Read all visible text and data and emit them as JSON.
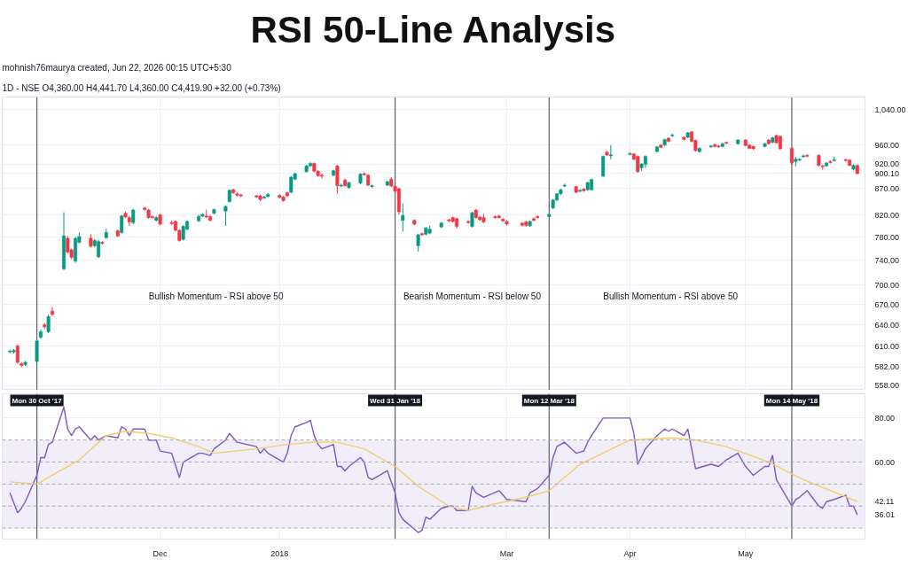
{
  "chart_data": [
    {
      "type": "candlestick",
      "title": "RSI 50-Line Analysis",
      "subtitle": "mohnish76maurya created, Jun 22, 2026 00:15 UTC+5:30",
      "annotations": [
        "1D - NSE O4,360.00 H4,441.70 L4,360.00 C4,419.90 +32.00 (+0.73%)",
        "Bullish Momentum - RSI above 50",
        "Bearish Momentum - RSI below 50",
        "Bullish Momentum - RSI above 50"
      ],
      "x": [
        "2017-10-23",
        "2017-10-24",
        "2017-10-25",
        "2017-10-26",
        "2017-10-27",
        "2017-10-30",
        "2017-10-31",
        "2017-11-01",
        "2017-11-02",
        "2017-11-03",
        "2017-11-06",
        "2017-11-07",
        "2017-11-08",
        "2017-11-09",
        "2017-11-10",
        "2017-11-13",
        "2017-11-14",
        "2017-11-15",
        "2017-11-16",
        "2017-11-17",
        "2017-11-20",
        "2017-11-21",
        "2017-11-22",
        "2017-11-23",
        "2017-11-24",
        "2017-11-27",
        "2017-11-28",
        "2017-11-29",
        "2017-11-30",
        "2017-12-01",
        "2017-12-04",
        "2017-12-05",
        "2017-12-06",
        "2017-12-07",
        "2017-12-08",
        "2017-12-11",
        "2017-12-12",
        "2017-12-13",
        "2017-12-14",
        "2017-12-15",
        "2017-12-18",
        "2017-12-19",
        "2017-12-20",
        "2017-12-21",
        "2017-12-22",
        "2017-12-26",
        "2017-12-27",
        "2017-12-28",
        "2017-12-29",
        "2018-01-01",
        "2018-01-02",
        "2018-01-03",
        "2018-01-04",
        "2018-01-05",
        "2018-01-08",
        "2018-01-09",
        "2018-01-10",
        "2018-01-11",
        "2018-01-12",
        "2018-01-15",
        "2018-01-16",
        "2018-01-17",
        "2018-01-18",
        "2018-01-19",
        "2018-01-22",
        "2018-01-23",
        "2018-01-24",
        "2018-01-25",
        "2018-01-29",
        "2018-01-30",
        "2018-01-31",
        "2018-02-01",
        "2018-02-02",
        "2018-02-05",
        "2018-02-06",
        "2018-02-07",
        "2018-02-08",
        "2018-02-09",
        "2018-02-12",
        "2018-02-14",
        "2018-02-15",
        "2018-02-16",
        "2018-02-19",
        "2018-02-20",
        "2018-02-21",
        "2018-02-22",
        "2018-02-23",
        "2018-02-26",
        "2018-02-27",
        "2018-02-28",
        "2018-03-01",
        "2018-03-05",
        "2018-03-06",
        "2018-03-07",
        "2018-03-08",
        "2018-03-09",
        "2018-03-12",
        "2018-03-13",
        "2018-03-14",
        "2018-03-15",
        "2018-03-16",
        "2018-03-19",
        "2018-03-20",
        "2018-03-21",
        "2018-03-22",
        "2018-03-23",
        "2018-03-26",
        "2018-03-27",
        "2018-03-28",
        "2018-04-02",
        "2018-04-03",
        "2018-04-04",
        "2018-04-05",
        "2018-04-06",
        "2018-04-09",
        "2018-04-10",
        "2018-04-11",
        "2018-04-12",
        "2018-04-13",
        "2018-04-16",
        "2018-04-17",
        "2018-04-18",
        "2018-04-19",
        "2018-04-20",
        "2018-04-23",
        "2018-04-24",
        "2018-04-25",
        "2018-04-26",
        "2018-04-27",
        "2018-04-30",
        "2018-05-02",
        "2018-05-03",
        "2018-05-04",
        "2018-05-07",
        "2018-05-08",
        "2018-05-09",
        "2018-05-10",
        "2018-05-11",
        "2018-05-14",
        "2018-05-15",
        "2018-05-16",
        "2018-05-17",
        "2018-05-18",
        "2018-05-21",
        "2018-05-22",
        "2018-05-23",
        "2018-05-24",
        "2018-05-25",
        "2018-05-28",
        "2018-05-29",
        "2018-05-30",
        "2018-05-31"
      ],
      "ohlc": [
        [
          602,
          605,
          600,
          603
        ],
        [
          602,
          606,
          600,
          604
        ],
        [
          610,
          612,
          586,
          588
        ],
        [
          586,
          588,
          582,
          584
        ],
        [
          585,
          590,
          583,
          588
        ],
        [
          589,
          619,
          587,
          617
        ],
        [
          622,
          633,
          620,
          630
        ],
        [
          640,
          642,
          634,
          637
        ],
        [
          630,
          655,
          628,
          652
        ],
        [
          660,
          666,
          652,
          655
        ],
        [
          726,
          825,
          724,
          782
        ],
        [
          778,
          782,
          752,
          754
        ],
        [
          758,
          760,
          742,
          745
        ],
        [
          739,
          780,
          736,
          778
        ],
        [
          771,
          788,
          769,
          781
        ],
        [
          778,
          785,
          762,
          764
        ],
        [
          765,
          777,
          762,
          774
        ],
        [
          746,
          775,
          744,
          772
        ],
        [
          771,
          773,
          767,
          769
        ],
        [
          779,
          795,
          777,
          788
        ],
        [
          791,
          794,
          780,
          782
        ],
        [
          788,
          820,
          786,
          818
        ],
        [
          823,
          826,
          814,
          816
        ],
        [
          815,
          818,
          800,
          807
        ],
        [
          806,
          831,
          803,
          829
        ],
        [
          833,
          835,
          828,
          830
        ],
        [
          829,
          831,
          813,
          815
        ],
        [
          817,
          819,
          813,
          815
        ],
        [
          810,
          818,
          808,
          815
        ],
        [
          820,
          822,
          801,
          803
        ],
        [
          806,
          810,
          802,
          804
        ],
        [
          808,
          810,
          790,
          792
        ],
        [
          792,
          794,
          772,
          774
        ],
        [
          776,
          801,
          774,
          799
        ],
        [
          794,
          810,
          792,
          808
        ],
        [
          809,
          820,
          807,
          817
        ],
        [
          818,
          823,
          816,
          821
        ],
        [
          818,
          830,
          814,
          816
        ],
        [
          817,
          820,
          808,
          810
        ],
        [
          823,
          832,
          821,
          830
        ],
        [
          827,
          838,
          800,
          836
        ],
        [
          845,
          869,
          843,
          867
        ],
        [
          868,
          870,
          860,
          862
        ],
        [
          860,
          862,
          855,
          857
        ],
        [
          858,
          860,
          854,
          856
        ],
        [
          856,
          858,
          852,
          854
        ],
        [
          856,
          858,
          846,
          849
        ],
        [
          852,
          856,
          850,
          854
        ],
        [
          855,
          861,
          853,
          859
        ],
        [
          857,
          859,
          851,
          853
        ],
        [
          854,
          856,
          845,
          847
        ],
        [
          862,
          864,
          854,
          856
        ],
        [
          863,
          895,
          861,
          893
        ],
        [
          889,
          902,
          887,
          900
        ],
        [
          904,
          918,
          902,
          916
        ],
        [
          916,
          924,
          914,
          921
        ],
        [
          921,
          923,
          903,
          905
        ],
        [
          905,
          907,
          894,
          896
        ],
        [
          897,
          900,
          890,
          895
        ],
        [
          897,
          908,
          895,
          906
        ],
        [
          916,
          918,
          860,
          876
        ],
        [
          875,
          880,
          873,
          877
        ],
        [
          887,
          890,
          874,
          876
        ],
        [
          872,
          884,
          870,
          882
        ],
        [
          881,
          901,
          879,
          899
        ],
        [
          900,
          903,
          896,
          898
        ],
        [
          897,
          899,
          875,
          877
        ],
        [
          874,
          878,
          872,
          876
        ],
        [
          877,
          886,
          875,
          884
        ],
        [
          889,
          893,
          873,
          875
        ],
        [
          875,
          877,
          863,
          865
        ],
        [
          870,
          872,
          820,
          826
        ],
        [
          810,
          842,
          790,
          819
        ],
        [
          810,
          812,
          801,
          803
        ],
        [
          765,
          786,
          755,
          784
        ],
        [
          786,
          788,
          782,
          784
        ],
        [
          785,
          798,
          783,
          796
        ],
        [
          787,
          800,
          785,
          794
        ],
        [
          798,
          807,
          796,
          805
        ],
        [
          811,
          813,
          807,
          809
        ],
        [
          815,
          817,
          806,
          808
        ],
        [
          813,
          815,
          795,
          799
        ],
        [
          808,
          810,
          804,
          806
        ],
        [
          799,
          826,
          797,
          824
        ],
        [
          829,
          831,
          813,
          815
        ],
        [
          816,
          818,
          809,
          811
        ],
        [
          815,
          822,
          805,
          807
        ],
        [
          817,
          819,
          813,
          815
        ],
        [
          818,
          820,
          813,
          815
        ],
        [
          812,
          814,
          807,
          809
        ],
        [
          808,
          810,
          801,
          803
        ],
        [
          805,
          807,
          799,
          801
        ],
        [
          807,
          809,
          798,
          801
        ],
        [
          800,
          810,
          798,
          808
        ],
        [
          813,
          815,
          808,
          810
        ],
        [
          817,
          819,
          813,
          815
        ],
        [
          817,
          823,
          815,
          821
        ],
        [
          833,
          850,
          831,
          848
        ],
        [
          848,
          862,
          846,
          860
        ],
        [
          860,
          870,
          858,
          868
        ],
        [
          875,
          880,
          873,
          877
        ],
        [
          874,
          876,
          861,
          863
        ],
        [
          865,
          869,
          863,
          867
        ],
        [
          869,
          871,
          864,
          866
        ],
        [
          868,
          884,
          866,
          882
        ],
        [
          868,
          890,
          866,
          888
        ],
        [
          895,
          938,
          893,
          936
        ],
        [
          945,
          947,
          937,
          939
        ],
        [
          937,
          960,
          930,
          939
        ],
        [
          940,
          944,
          938,
          942
        ],
        [
          941,
          943,
          928,
          930
        ],
        [
          936,
          938,
          902,
          904
        ],
        [
          912,
          922,
          905,
          920
        ],
        [
          919,
          938,
          912,
          936
        ],
        [
          946,
          958,
          944,
          956
        ],
        [
          960,
          962,
          953,
          955
        ],
        [
          960,
          974,
          958,
          972
        ],
        [
          975,
          977,
          966,
          968
        ],
        [
          980,
          985,
          978,
          982
        ],
        [
          977,
          979,
          970,
          972
        ],
        [
          977,
          989,
          975,
          987
        ],
        [
          989,
          991,
          966,
          968
        ],
        [
          970,
          972,
          946,
          948
        ],
        [
          946,
          955,
          944,
          953
        ],
        [
          956,
          960,
          954,
          958
        ],
        [
          961,
          963,
          955,
          957
        ],
        [
          958,
          960,
          954,
          956
        ],
        [
          957,
          965,
          955,
          963
        ],
        [
          966,
          968,
          962,
          964
        ],
        [
          963,
          973,
          961,
          971
        ],
        [
          971,
          973,
          957,
          959
        ],
        [
          960,
          962,
          951,
          953
        ],
        [
          957,
          959,
          950,
          952
        ],
        [
          957,
          965,
          955,
          963
        ],
        [
          971,
          973,
          961,
          963
        ],
        [
          966,
          978,
          964,
          976
        ],
        [
          981,
          983,
          963,
          965
        ],
        [
          979,
          981,
          950,
          952
        ],
        [
          953,
          955,
          918,
          922
        ],
        [
          925,
          935,
          915,
          930
        ],
        [
          928,
          932,
          926,
          930
        ],
        [
          935,
          940,
          933,
          937
        ],
        [
          938,
          940,
          934,
          936
        ],
        [
          938,
          940,
          915,
          917
        ],
        [
          916,
          918,
          908,
          914
        ],
        [
          916,
          924,
          914,
          922
        ],
        [
          925,
          927,
          921,
          923
        ],
        [
          927,
          935,
          925,
          929
        ],
        [
          929,
          931,
          925,
          927
        ],
        [
          928,
          930,
          915,
          917
        ],
        [
          909,
          919,
          907,
          917
        ],
        [
          917,
          919,
          899,
          900.1
        ]
      ],
      "xlim": [
        "2017-10-21",
        "2018-06-02"
      ],
      "xticks": [
        {
          "value": "2017-12-01",
          "label": null
        },
        {
          "value": "2018-01-01",
          "label": null
        },
        {
          "value": "2018-03-01",
          "label": null
        },
        {
          "value": "2018-04-02",
          "label": null
        },
        {
          "value": "2018-05-02",
          "label": null
        }
      ],
      "ylim": [
        552,
        1070
      ],
      "log": true,
      "yticks": [
        {
          "value": 558,
          "label": "558.00"
        },
        {
          "value": 582,
          "label": "582.00"
        },
        {
          "value": 610,
          "label": "610.00"
        },
        {
          "value": 640,
          "label": "640.00"
        },
        {
          "value": 670,
          "label": "670.00"
        },
        {
          "value": 700,
          "label": "700.00"
        },
        {
          "value": 740,
          "label": "740.00"
        },
        {
          "value": 780,
          "label": "780.00"
        },
        {
          "value": 820,
          "label": "820.00"
        },
        {
          "value": 870,
          "label": "870.00"
        },
        {
          "value": 900.1,
          "label": "900.10"
        },
        {
          "value": 920,
          "label": "920.00"
        },
        {
          "value": 960,
          "label": "960.00"
        },
        {
          "value": 1040,
          "label": "1,040.00"
        }
      ],
      "ref_lines": [
        {
          "axis": "x",
          "value": "2017-10-30",
          "color": "#5d606b"
        },
        {
          "axis": "x",
          "value": "2018-01-31",
          "color": "#5d606b"
        },
        {
          "axis": "x",
          "value": "2018-03-12",
          "color": "#5d606b"
        },
        {
          "axis": "x",
          "value": "2018-05-14",
          "color": "#5d606b"
        }
      ],
      "tick_labels": "y",
      "grid": true
    },
    {
      "type": "line",
      "series": [
        {
          "color": "#7e57c2",
          "x": [
            "2017-10-23",
            "2017-10-25",
            "2017-10-26",
            "2017-10-27",
            "2017-10-30",
            "2017-10-31",
            "2017-11-01",
            "2017-11-02",
            "2017-11-03",
            "2017-11-06",
            "2017-11-07",
            "2017-11-08",
            "2017-11-09",
            "2017-11-10",
            "2017-11-13",
            "2017-11-14",
            "2017-11-15",
            "2017-11-17",
            "2017-11-20",
            "2017-11-21",
            "2017-11-22",
            "2017-11-23",
            "2017-11-24",
            "2017-11-27",
            "2017-11-28",
            "2017-11-30",
            "2017-12-01",
            "2017-12-04",
            "2017-12-06",
            "2017-12-07",
            "2017-12-11",
            "2017-12-12",
            "2017-12-14",
            "2017-12-15",
            "2017-12-18",
            "2017-12-19",
            "2017-12-20",
            "2017-12-21",
            "2017-12-26",
            "2017-12-27",
            "2017-12-28",
            "2017-12-29",
            "2018-01-02",
            "2018-01-03",
            "2018-01-04",
            "2018-01-05",
            "2018-01-08",
            "2018-01-09",
            "2018-01-10",
            "2018-01-11",
            "2018-01-12",
            "2018-01-15",
            "2018-01-16",
            "2018-01-17",
            "2018-01-18",
            "2018-01-19",
            "2018-01-22",
            "2018-01-23",
            "2018-01-24",
            "2018-01-25",
            "2018-01-29",
            "2018-01-31",
            "2018-02-01",
            "2018-02-02",
            "2018-02-06",
            "2018-02-07",
            "2018-02-08",
            "2018-02-09",
            "2018-02-12",
            "2018-02-14",
            "2018-02-15",
            "2018-02-16",
            "2018-02-19",
            "2018-02-20",
            "2018-02-21",
            "2018-02-23",
            "2018-02-27",
            "2018-03-01",
            "2018-03-06",
            "2018-03-07",
            "2018-03-09",
            "2018-03-12",
            "2018-03-13",
            "2018-03-14",
            "2018-03-16",
            "2018-03-19",
            "2018-03-21",
            "2018-03-22",
            "2018-03-23",
            "2018-03-26",
            "2018-03-27",
            "2018-04-02",
            "2018-04-03",
            "2018-04-04",
            "2018-04-06",
            "2018-04-09",
            "2018-04-11",
            "2018-04-12",
            "2018-04-13",
            "2018-04-16",
            "2018-04-17",
            "2018-04-19",
            "2018-04-23",
            "2018-04-25",
            "2018-04-27",
            "2018-04-30",
            "2018-05-02",
            "2018-05-04",
            "2018-05-07",
            "2018-05-08",
            "2018-05-09",
            "2018-05-10",
            "2018-05-14",
            "2018-05-15",
            "2018-05-16",
            "2018-05-18",
            "2018-05-21",
            "2018-05-22",
            "2018-05-23",
            "2018-05-25",
            "2018-05-28",
            "2018-05-29",
            "2018-05-30",
            "2018-05-31"
          ],
          "values": [
            46,
            37,
            39,
            42,
            54,
            62,
            62,
            68,
            69,
            85,
            75,
            72,
            75,
            76,
            70,
            72,
            70,
            72,
            71,
            76,
            75,
            72,
            75,
            75,
            70,
            70,
            65,
            64,
            53,
            60,
            64,
            64,
            63,
            66,
            70,
            73,
            71,
            69,
            67,
            64,
            66,
            64,
            60,
            64,
            72,
            76,
            78,
            79,
            72,
            68,
            66,
            68,
            58,
            58,
            56,
            58,
            62,
            60,
            53,
            52,
            56,
            46,
            37,
            34,
            28,
            29,
            35,
            34,
            39,
            40,
            40,
            38,
            38,
            49,
            46,
            44,
            47,
            43,
            42,
            46,
            48,
            54,
            62,
            67,
            69,
            64,
            65,
            69,
            72,
            80,
            80,
            80,
            73,
            59,
            66,
            72,
            75,
            74,
            75,
            72,
            75,
            57,
            59,
            58,
            61,
            64,
            58,
            54,
            58,
            58,
            63,
            52,
            40,
            43,
            44,
            47,
            40,
            39,
            42,
            43,
            45,
            40,
            40,
            36.01
          ]
        },
        {
          "color": "#f2cf6b",
          "x": [
            "2017-10-23",
            "2017-10-30",
            "2017-11-03",
            "2017-11-10",
            "2017-11-17",
            "2017-11-22",
            "2017-11-28",
            "2017-12-04",
            "2017-12-11",
            "2017-12-15",
            "2017-12-26",
            "2018-01-03",
            "2018-01-10",
            "2018-01-16",
            "2018-01-23",
            "2018-01-31",
            "2018-02-06",
            "2018-02-14",
            "2018-02-19",
            "2018-02-26",
            "2018-03-06",
            "2018-03-12",
            "2018-03-20",
            "2018-04-02",
            "2018-04-13",
            "2018-04-19",
            "2018-04-27",
            "2018-05-08",
            "2018-05-17",
            "2018-05-31"
          ],
          "values": [
            51,
            50,
            54,
            61,
            72,
            74,
            73,
            71,
            67,
            64,
            66,
            68,
            69,
            69,
            66,
            58,
            49,
            40,
            38,
            41,
            44,
            47,
            59,
            70,
            71,
            70,
            67,
            60,
            52,
            42.11
          ]
        }
      ],
      "xlim": [
        "2017-10-21",
        "2018-06-02"
      ],
      "xticks": [
        {
          "value": "2017-12-01",
          "label": "Dec"
        },
        {
          "value": "2018-01-01",
          "label": "2018"
        },
        {
          "value": "2018-03-01",
          "label": "Mar"
        },
        {
          "value": "2018-04-02",
          "label": "Apr"
        },
        {
          "value": "2018-05-02",
          "label": "May"
        }
      ],
      "ylim": [
        25,
        91
      ],
      "yticks": [
        {
          "value": 80,
          "label": "80.00"
        },
        {
          "value": 60,
          "label": "60.00"
        },
        {
          "value": 42.11,
          "label": "42.11"
        },
        {
          "value": 36.01,
          "label": "36.01"
        }
      ],
      "bands": [
        {
          "axis": "y",
          "from": 30,
          "to": 70,
          "color": "#f1edf9"
        }
      ],
      "ref_lines": [
        {
          "axis": "y",
          "value": 70,
          "color": "#a7a9b3",
          "line_style": "dashed"
        },
        {
          "axis": "y",
          "value": 60,
          "color": "#a7a9b3",
          "line_style": "dashed"
        },
        {
          "axis": "y",
          "value": 50,
          "color": "#a7a9b3",
          "line_style": "dashed"
        },
        {
          "axis": "y",
          "value": 40,
          "color": "#a7a9b3",
          "line_style": "dashed"
        },
        {
          "axis": "y",
          "value": 30,
          "color": "#a7a9b3",
          "line_style": "dashed"
        },
        {
          "axis": "x",
          "value": "2017-10-30",
          "label": "Mon 30 Oct '17",
          "color": "#5d606b"
        },
        {
          "axis": "x",
          "value": "2018-01-31",
          "label": "Wed 31 Jan '18",
          "color": "#5d606b"
        },
        {
          "axis": "x",
          "value": "2018-03-12",
          "label": "Mon 12 Mar '18",
          "color": "#5d606b"
        },
        {
          "axis": "x",
          "value": "2018-05-14",
          "label": "Mon 14 May '18",
          "color": "#5d606b"
        }
      ],
      "marker": "none",
      "line_style": "solid",
      "grid": true
    }
  ]
}
